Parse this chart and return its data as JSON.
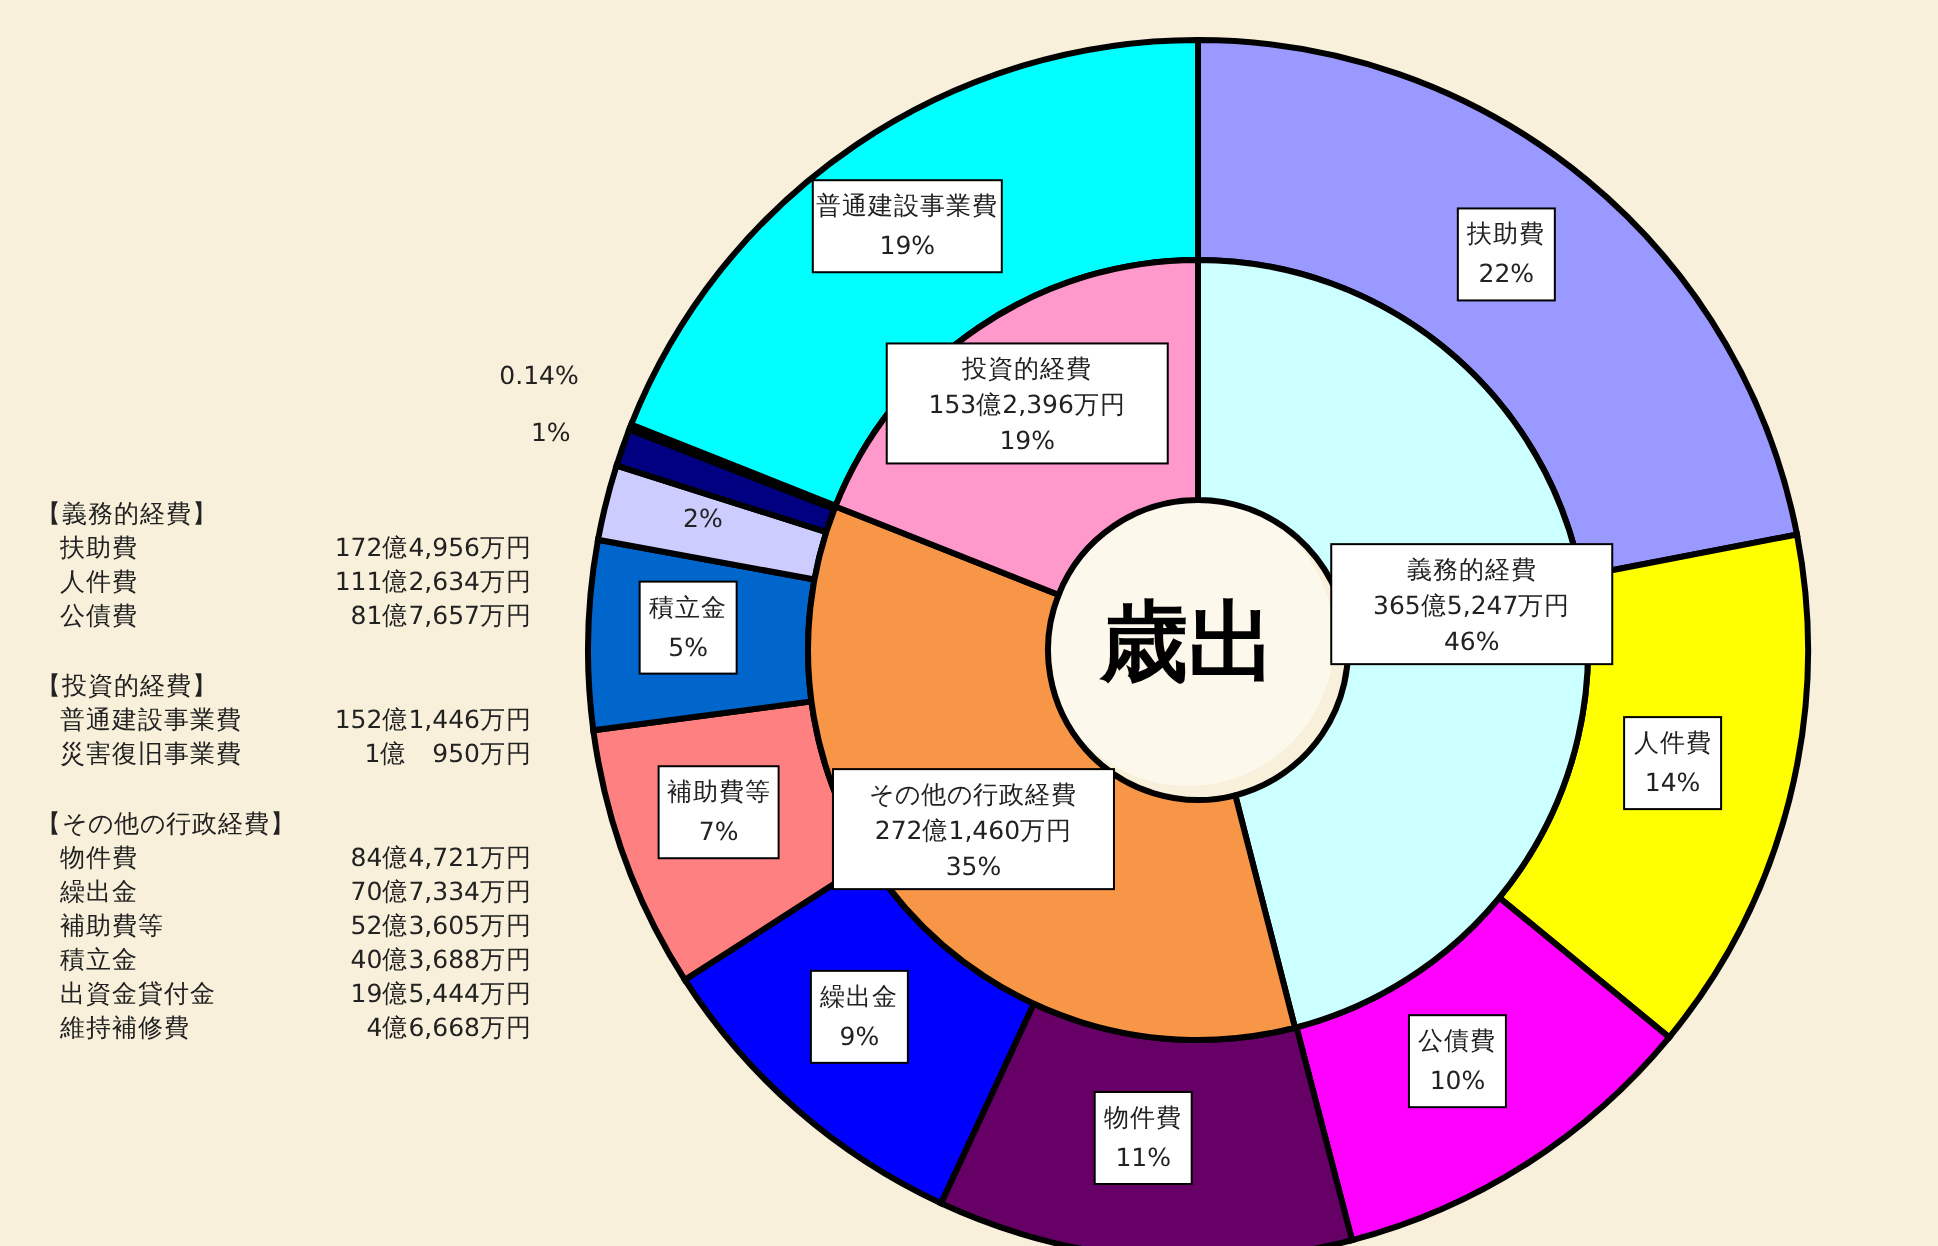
{
  "chart_data": [
    {
      "type": "donut",
      "title": "歳出",
      "categories": [
        "義務的経費",
        "その他の行政経費",
        "投資的経費"
      ],
      "values": [
        46,
        35,
        19
      ],
      "colors": [
        "#ccffff",
        "#f79646",
        "#ff99cc"
      ],
      "value_labels": [
        "365億5,247万円\n46%",
        "272億1,460万円\n35%",
        "153億2,396万円\n19%"
      ],
      "annotations": [
        "【義務的経費】",
        "扶助費\t172億4,956万円",
        "人件費\t111億2,634万円",
        "公債費\t81億7,657万円",
        "【投資的経費】",
        "普通建設事業費\t152億1,446万円",
        "災害復旧事業費\t1億　950万円",
        "【その他の行政経費】",
        "物件費\t84億4,721万円",
        "繰出金\t70億7,334万円",
        "補助費等\t52億3,605万円",
        "積立金\t40億3,688万円",
        "出資金貸付金\t19億5,444万円",
        "維持補修費\t4億6,668万円"
      ]
    },
    {
      "type": "donut",
      "categories": [
        "扶助費",
        "人件費",
        "公債費",
        "物件費",
        "繰出金",
        "補助費等",
        "積立金",
        null,
        null,
        null,
        "普通建設事業費"
      ],
      "values": [
        22,
        14,
        10,
        11,
        9,
        7,
        5,
        2,
        1,
        0.14,
        19
      ],
      "colors": [
        "#9999ff",
        "#ffff00",
        "#ff00ff",
        "#660066",
        "#0000ff",
        "#ff8080",
        "#0066cc",
        "#ccccff",
        "#000080",
        "#000000",
        "#00ffff"
      ],
      "value_labels": [
        "22%",
        "14%",
        "10%",
        "11%",
        "9%",
        "7%",
        "5%",
        "2%",
        "1%",
        "0.14%",
        "19%"
      ]
    }
  ]
}
